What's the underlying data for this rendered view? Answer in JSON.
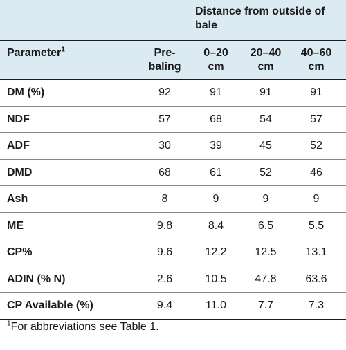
{
  "header": {
    "group_label": "Distance from outside of bale",
    "parameter_label": "Parameter",
    "parameter_footnote_marker": "1",
    "columns": [
      {
        "line1": "Pre-",
        "line2": "baling"
      },
      {
        "line1": "0–20",
        "line2": "cm"
      },
      {
        "line1": "20–40",
        "line2": "cm"
      },
      {
        "line1": "40–60",
        "line2": "cm"
      }
    ]
  },
  "rows": [
    {
      "parameter": "DM (%)",
      "values": [
        "92",
        "91",
        "91",
        "91"
      ]
    },
    {
      "parameter": "NDF",
      "values": [
        "57",
        "68",
        "54",
        "57"
      ]
    },
    {
      "parameter": "ADF",
      "values": [
        "30",
        "39",
        "45",
        "52"
      ]
    },
    {
      "parameter": "DMD",
      "values": [
        "68",
        "61",
        "52",
        "46"
      ]
    },
    {
      "parameter": "Ash",
      "values": [
        "8",
        "9",
        "9",
        "9"
      ]
    },
    {
      "parameter": "ME",
      "values": [
        "9.8",
        "8.4",
        "6.5",
        "5.5"
      ]
    },
    {
      "parameter": "CP%",
      "values": [
        "9.6",
        "12.2",
        "12.5",
        "13.1"
      ]
    },
    {
      "parameter": "ADIN (% N)",
      "values": [
        "2.6",
        "10.5",
        "47.8",
        "63.6"
      ]
    },
    {
      "parameter": "CP Available (%)",
      "values": [
        "9.4",
        "11.0",
        "7.7",
        "7.3"
      ]
    }
  ],
  "footnote": {
    "marker": "1",
    "text": "For abbreviations see Table 1."
  },
  "colors": {
    "header_background": "#dceaf4",
    "text": "#1a1a1a"
  }
}
